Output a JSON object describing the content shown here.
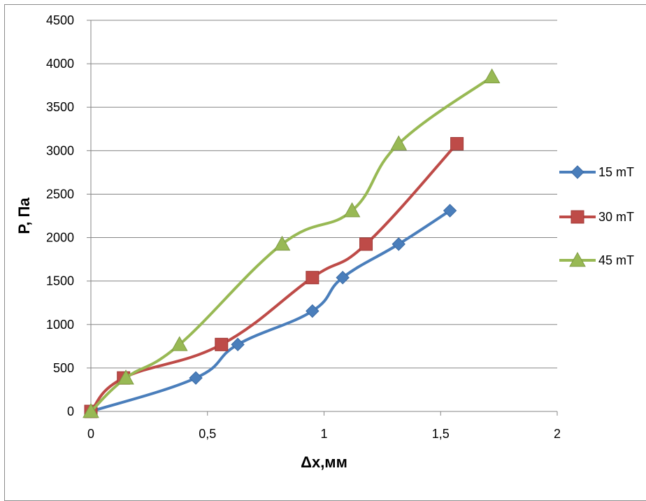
{
  "chart_data": {
    "type": "line",
    "title": "",
    "xlabel": "Δx,мм",
    "ylabel": "P, Па",
    "xlim": [
      0,
      2
    ],
    "ylim": [
      0,
      4500
    ],
    "x_ticks": [
      0,
      0.5,
      1,
      1.5,
      2
    ],
    "x_tick_labels": [
      "0",
      "0,5",
      "1",
      "1,5",
      "2"
    ],
    "y_ticks": [
      0,
      500,
      1000,
      1500,
      2000,
      2500,
      3000,
      3500,
      4000,
      4500
    ],
    "y_tick_labels": [
      "0",
      "500",
      "1000",
      "1500",
      "2000",
      "2500",
      "3000",
      "3500",
      "4000",
      "4500"
    ],
    "grid": "horizontal",
    "legend": "right",
    "series": [
      {
        "name": "15 mT",
        "color": "#4a7ebb",
        "marker": "diamond",
        "points": [
          [
            0,
            0
          ],
          [
            0.45,
            385
          ],
          [
            0.63,
            770
          ],
          [
            0.95,
            1155
          ],
          [
            1.08,
            1540
          ],
          [
            1.32,
            1925
          ],
          [
            1.54,
            2310
          ]
        ]
      },
      {
        "name": "30 mT",
        "color": "#be4b48",
        "marker": "square",
        "points": [
          [
            0,
            0
          ],
          [
            0.14,
            385
          ],
          [
            0.56,
            770
          ],
          [
            0.95,
            1540
          ],
          [
            1.18,
            1925
          ],
          [
            1.57,
            3080
          ]
        ]
      },
      {
        "name": "45 mT",
        "color": "#98b954",
        "marker": "triangle",
        "points": [
          [
            0,
            0
          ],
          [
            0.15,
            385
          ],
          [
            0.38,
            770
          ],
          [
            0.82,
            1925
          ],
          [
            1.12,
            2310
          ],
          [
            1.32,
            3080
          ],
          [
            1.72,
            3850
          ]
        ]
      }
    ]
  }
}
